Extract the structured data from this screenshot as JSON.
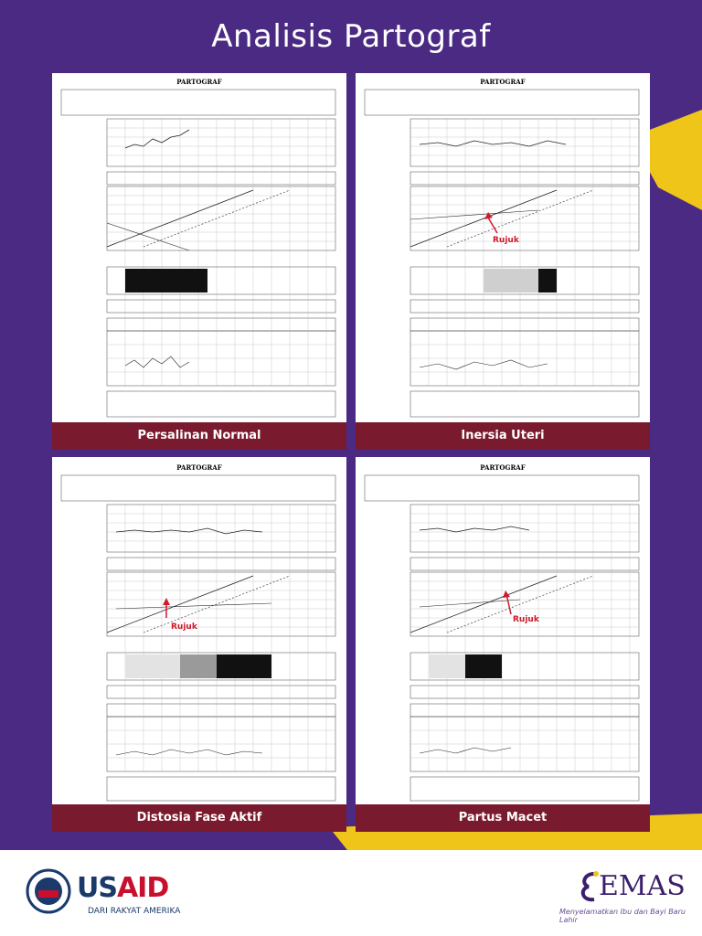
{
  "title": "Analisis Partograf",
  "panels": [
    {
      "caption": "Persalinan Normal",
      "rujuk": ""
    },
    {
      "caption": "Inersia Uteri",
      "rujuk": "Rujuk"
    },
    {
      "caption": "Distosia Fase Aktif",
      "rujuk": "Rujuk"
    },
    {
      "caption": "Partus Macet",
      "rujuk": "Rujuk"
    }
  ],
  "sheet_heading": "PARTOGRAF",
  "footer": {
    "usaid_u": "US",
    "usaid_a": "AID",
    "usaid_tagline": "DARI RAKYAT AMERIKA",
    "emas_logo": "EMAS",
    "emas_tagline": "Menyelamatkan Ibu dan Bayi Baru Lahir"
  },
  "colors": {
    "purple": "#4b2a83",
    "yellow": "#f0c51a",
    "maroon": "#7a1a2e",
    "usaid_blue": "#1b3a6b",
    "usaid_red": "#c8102e"
  }
}
